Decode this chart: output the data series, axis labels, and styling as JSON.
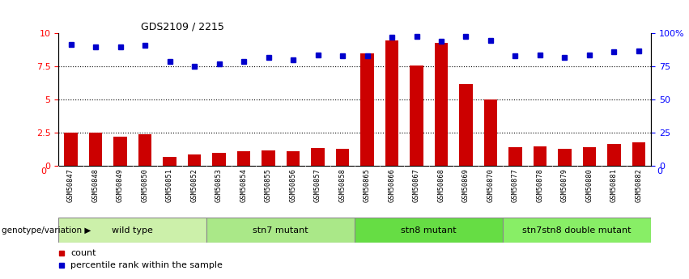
{
  "title": "GDS2109 / 2215",
  "samples": [
    "GSM50847",
    "GSM50848",
    "GSM50849",
    "GSM50850",
    "GSM50851",
    "GSM50852",
    "GSM50853",
    "GSM50854",
    "GSM50855",
    "GSM50856",
    "GSM50857",
    "GSM50858",
    "GSM50865",
    "GSM50866",
    "GSM50867",
    "GSM50868",
    "GSM50869",
    "GSM50870",
    "GSM50877",
    "GSM50878",
    "GSM50879",
    "GSM50880",
    "GSM50881",
    "GSM50882"
  ],
  "counts": [
    2.5,
    2.5,
    2.2,
    2.4,
    0.7,
    0.85,
    1.0,
    1.1,
    1.2,
    1.1,
    1.35,
    1.3,
    8.5,
    9.5,
    7.6,
    9.3,
    6.2,
    5.0,
    1.4,
    1.5,
    1.3,
    1.4,
    1.65,
    1.8
  ],
  "percentiles": [
    92,
    90,
    90,
    91,
    79,
    75,
    77,
    79,
    82,
    80,
    84,
    83,
    83,
    97,
    98,
    94,
    98,
    95,
    83,
    84,
    82,
    84,
    86,
    87
  ],
  "groups": [
    {
      "label": "wild type",
      "start": 0,
      "end": 6,
      "color": "#ccf0aa"
    },
    {
      "label": "stn7 mutant",
      "start": 6,
      "end": 12,
      "color": "#aae888"
    },
    {
      "label": "stn8 mutant",
      "start": 12,
      "end": 18,
      "color": "#66dd44"
    },
    {
      "label": "stn7stn8 double mutant",
      "start": 18,
      "end": 24,
      "color": "#88ee66"
    }
  ],
  "bar_color": "#cc0000",
  "dot_color": "#0000cc",
  "left_ylim": [
    0,
    10
  ],
  "right_ylim": [
    0,
    100
  ],
  "left_yticks": [
    0,
    2.5,
    5,
    7.5,
    10
  ],
  "right_ytick_vals": [
    0,
    25,
    50,
    75,
    100
  ],
  "right_ytick_labels": [
    "0",
    "25",
    "50",
    "75",
    "100%"
  ],
  "grid_lines": [
    2.5,
    5.0,
    7.5
  ],
  "xlabel_genotype": "genotype/variation",
  "legend_count": "count",
  "legend_percentile": "percentile rank within the sample",
  "tick_bg": "#cccccc",
  "plot_bg": "#ffffff"
}
